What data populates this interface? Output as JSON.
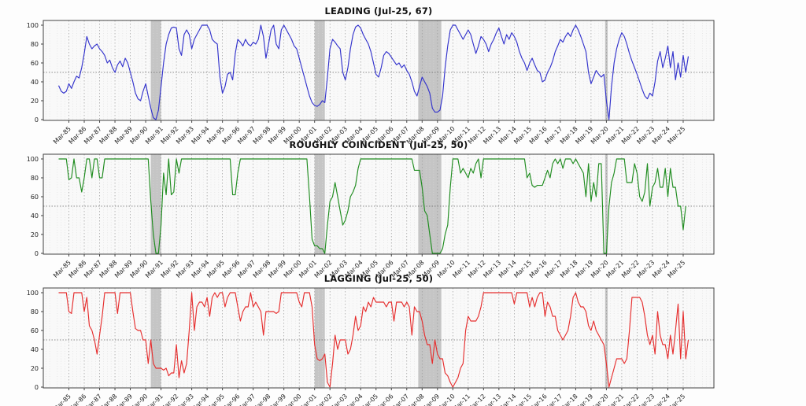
{
  "chart_data": {
    "type": "line",
    "layout": "3 stacked subplots, shared x axis range, grid on, no legend",
    "x_tick_labels": [
      "Mar-85",
      "Mar-86",
      "Mar-87",
      "Mar-88",
      "Mar-89",
      "Mar-90",
      "Mar-91",
      "Mar-92",
      "Mar-93",
      "Mar-94",
      "Mar-95",
      "Mar-96",
      "Mar-97",
      "Mar-98",
      "Mar-99",
      "Mar-00",
      "Mar-01",
      "Mar-02",
      "Mar-03",
      "Mar-04",
      "Mar-05",
      "Mar-06",
      "Mar-07",
      "Mar-08",
      "Mar-09",
      "Mar-10",
      "Mar-11",
      "Mar-12",
      "Mar-13",
      "Mar-14",
      "Mar-15",
      "Mar-16",
      "Mar-17",
      "Mar-18",
      "Mar-19",
      "Mar-20",
      "Mar-21",
      "Mar-22",
      "Mar-23",
      "Mar-24",
      "Mar-25"
    ],
    "yticks": [
      0,
      20,
      40,
      60,
      80,
      100
    ],
    "ylim": [
      0,
      100
    ],
    "reference_line_y": 50,
    "recession_band_color": "#b8b8b8",
    "recession_bands": [
      {
        "start": "Jul-1990",
        "end": "Mar-1991"
      },
      {
        "start": "Mar-2001",
        "end": "Nov-2001"
      },
      {
        "start": "Dec-2007",
        "end": "Jun-2009"
      },
      {
        "start": "Feb-2020",
        "end": "Apr-2020"
      }
    ],
    "series_start": "Jul-1984",
    "step_months": 2,
    "charts": [
      {
        "id": "leading",
        "title": "LEADING (Jul-25, 67)",
        "latest_label": "Jul-25",
        "latest_value": 67,
        "color": "#3333cc",
        "values": [
          36,
          30,
          28,
          30,
          38,
          33,
          40,
          46,
          44,
          55,
          70,
          88,
          80,
          75,
          78,
          80,
          75,
          72,
          68,
          60,
          63,
          55,
          50,
          58,
          62,
          56,
          65,
          60,
          50,
          40,
          28,
          22,
          20,
          30,
          38,
          25,
          12,
          2,
          0,
          10,
          35,
          60,
          80,
          90,
          97,
          98,
          97,
          75,
          68,
          90,
          95,
          90,
          75,
          85,
          90,
          95,
          100,
          100,
          100,
          95,
          85,
          82,
          80,
          45,
          28,
          35,
          48,
          50,
          42,
          70,
          85,
          82,
          78,
          85,
          80,
          78,
          82,
          80,
          85,
          100,
          88,
          65,
          80,
          95,
          100,
          80,
          75,
          95,
          100,
          95,
          90,
          85,
          78,
          75,
          65,
          55,
          45,
          35,
          25,
          18,
          15,
          14,
          16,
          20,
          18,
          45,
          75,
          85,
          82,
          78,
          75,
          50,
          42,
          55,
          75,
          90,
          98,
          100,
          97,
          90,
          85,
          80,
          72,
          60,
          48,
          45,
          55,
          68,
          72,
          70,
          66,
          62,
          58,
          60,
          55,
          58,
          52,
          48,
          40,
          30,
          25,
          35,
          45,
          40,
          35,
          28,
          12,
          8,
          8,
          10,
          25,
          55,
          78,
          95,
          100,
          100,
          95,
          90,
          85,
          90,
          95,
          90,
          80,
          70,
          78,
          88,
          85,
          80,
          72,
          80,
          85,
          92,
          97,
          88,
          80,
          90,
          85,
          92,
          88,
          82,
          72,
          65,
          60,
          52,
          60,
          65,
          58,
          52,
          50,
          40,
          42,
          50,
          55,
          62,
          72,
          78,
          85,
          82,
          88,
          92,
          88,
          95,
          100,
          95,
          88,
          80,
          72,
          50,
          38,
          45,
          52,
          48,
          45,
          48,
          20,
          0,
          35,
          60,
          75,
          85,
          92,
          88,
          80,
          70,
          62,
          55,
          48,
          40,
          32,
          25,
          22,
          28,
          25,
          40,
          62,
          72,
          55,
          65,
          78,
          55,
          72,
          42,
          60,
          45,
          68,
          50,
          67
        ]
      },
      {
        "id": "coincident",
        "title": "ROUGHLY COINCIDENT (Jul-25, 50)",
        "latest_label": "Jul-25",
        "latest_value": 50,
        "color": "#1f8c1f",
        "values": [
          100,
          100,
          100,
          100,
          78,
          80,
          100,
          80,
          80,
          65,
          80,
          100,
          100,
          80,
          100,
          100,
          80,
          80,
          100,
          100,
          100,
          100,
          100,
          100,
          100,
          100,
          100,
          100,
          100,
          100,
          100,
          100,
          100,
          100,
          100,
          100,
          55,
          20,
          0,
          0,
          30,
          85,
          62,
          100,
          62,
          65,
          100,
          85,
          100,
          100,
          100,
          100,
          100,
          100,
          100,
          100,
          100,
          100,
          100,
          100,
          100,
          100,
          100,
          100,
          100,
          100,
          100,
          100,
          62,
          62,
          85,
          100,
          100,
          100,
          100,
          100,
          100,
          100,
          100,
          100,
          100,
          100,
          100,
          100,
          100,
          100,
          100,
          100,
          100,
          100,
          100,
          100,
          100,
          100,
          100,
          100,
          100,
          100,
          60,
          15,
          8,
          8,
          5,
          5,
          0,
          30,
          55,
          60,
          75,
          60,
          45,
          30,
          35,
          45,
          60,
          65,
          72,
          90,
          100,
          100,
          100,
          100,
          100,
          100,
          100,
          100,
          100,
          100,
          100,
          100,
          100,
          100,
          100,
          100,
          100,
          100,
          100,
          100,
          100,
          88,
          88,
          88,
          70,
          45,
          40,
          20,
          0,
          0,
          0,
          0,
          5,
          20,
          30,
          70,
          100,
          100,
          100,
          85,
          90,
          85,
          80,
          90,
          85,
          95,
          100,
          80,
          100,
          100,
          100,
          100,
          100,
          100,
          100,
          100,
          100,
          100,
          100,
          100,
          100,
          100,
          100,
          100,
          100,
          80,
          85,
          72,
          70,
          72,
          72,
          72,
          80,
          88,
          80,
          95,
          100,
          95,
          100,
          90,
          100,
          100,
          100,
          95,
          100,
          95,
          90,
          85,
          60,
          95,
          55,
          75,
          60,
          95,
          95,
          0,
          0,
          50,
          75,
          85,
          100,
          100,
          100,
          100,
          75,
          75,
          75,
          95,
          85,
          60,
          55,
          65,
          95,
          50,
          70,
          75,
          90,
          70,
          70,
          90,
          60,
          90,
          70,
          70,
          50,
          50,
          25,
          50
        ]
      },
      {
        "id": "lagging",
        "title": "LAGGING (Jul-25, 50)",
        "latest_label": "Jul-25",
        "latest_value": 50,
        "color": "#e62e2e",
        "values": [
          100,
          100,
          100,
          100,
          80,
          78,
          100,
          100,
          100,
          100,
          80,
          95,
          65,
          60,
          50,
          35,
          55,
          75,
          100,
          100,
          100,
          100,
          100,
          78,
          100,
          100,
          100,
          100,
          100,
          80,
          62,
          60,
          60,
          50,
          50,
          25,
          50,
          25,
          20,
          20,
          20,
          18,
          20,
          12,
          15,
          15,
          45,
          10,
          28,
          15,
          25,
          60,
          100,
          60,
          85,
          90,
          90,
          85,
          95,
          75,
          95,
          100,
          95,
          100,
          100,
          85,
          95,
          100,
          100,
          100,
          85,
          70,
          80,
          85,
          85,
          100,
          85,
          90,
          85,
          80,
          55,
          80,
          80,
          80,
          80,
          78,
          80,
          100,
          100,
          100,
          100,
          100,
          100,
          100,
          90,
          85,
          100,
          100,
          100,
          85,
          45,
          30,
          28,
          30,
          35,
          5,
          0,
          25,
          55,
          40,
          50,
          50,
          50,
          35,
          40,
          55,
          75,
          60,
          65,
          85,
          80,
          90,
          85,
          95,
          90,
          90,
          90,
          90,
          85,
          90,
          90,
          70,
          90,
          90,
          90,
          85,
          90,
          85,
          55,
          85,
          80,
          80,
          70,
          55,
          45,
          45,
          25,
          50,
          35,
          30,
          30,
          15,
          12,
          5,
          0,
          5,
          10,
          20,
          25,
          60,
          75,
          70,
          70,
          70,
          75,
          85,
          100,
          100,
          100,
          100,
          100,
          100,
          100,
          100,
          100,
          100,
          100,
          100,
          88,
          100,
          100,
          100,
          100,
          100,
          85,
          95,
          85,
          95,
          100,
          100,
          75,
          90,
          85,
          75,
          75,
          60,
          55,
          50,
          55,
          60,
          75,
          95,
          100,
          90,
          85,
          85,
          80,
          65,
          60,
          70,
          60,
          55,
          50,
          45,
          25,
          0,
          10,
          20,
          30,
          30,
          30,
          25,
          30,
          60,
          95,
          95,
          95,
          95,
          90,
          75,
          55,
          45,
          55,
          35,
          80,
          55,
          45,
          45,
          30,
          55,
          35,
          60,
          88,
          30,
          80,
          30,
          50
        ]
      }
    ]
  }
}
